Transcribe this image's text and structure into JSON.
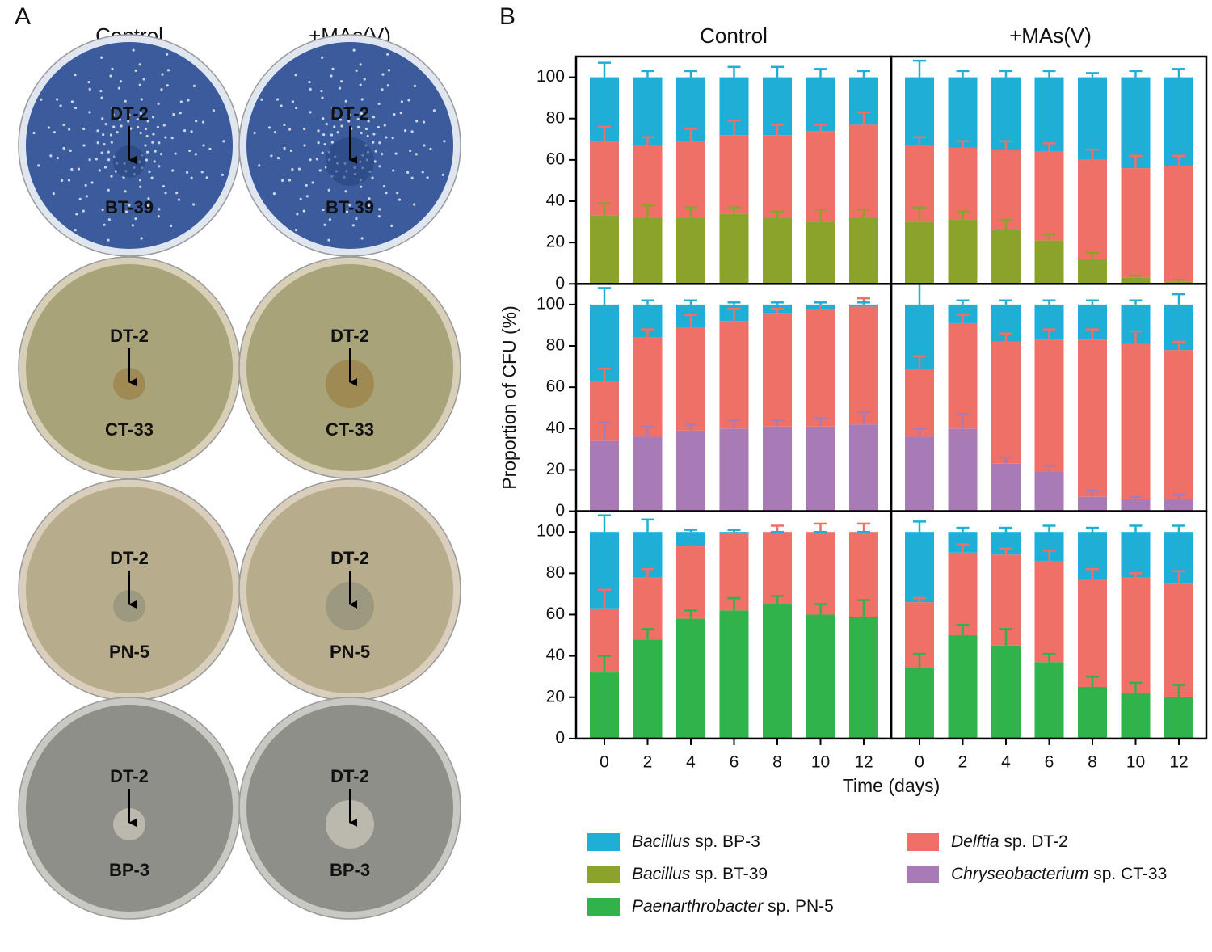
{
  "panel_a": {
    "label": "A",
    "columns": [
      "Control",
      "+MAs(V)"
    ],
    "plates": [
      {
        "top": "DT-2",
        "bottom": "BT-39"
      },
      {
        "top": "DT-2",
        "bottom": "CT-33"
      },
      {
        "top": "DT-2",
        "bottom": "PN-5"
      },
      {
        "top": "DT-2",
        "bottom": "BP-3"
      }
    ]
  },
  "panel_b": {
    "label": "B",
    "column_titles": [
      "Control",
      "+MAs(V)"
    ],
    "y_label": "Proportion of CFU (%)",
    "x_label": "Time (days)"
  },
  "chart_data": [
    {
      "type": "bar",
      "stacked": true,
      "ylim": [
        0,
        110
      ],
      "yticks": [
        0,
        20,
        40,
        60,
        80,
        100
      ],
      "series": [
        {
          "name": "Bacillus sp. BT-39",
          "color": "#8ca32b",
          "values": [
            33,
            32,
            32,
            34,
            32,
            30,
            32
          ],
          "errors": [
            6,
            6,
            5,
            3,
            3,
            6,
            4
          ]
        },
        {
          "name": "Delftia sp. DT-2",
          "color": "#ef7067",
          "values": [
            36,
            35,
            37,
            38,
            40,
            44,
            45
          ],
          "errors": [
            7,
            4,
            6,
            7,
            5,
            3,
            6
          ]
        },
        {
          "name": "Bacillus sp. BP-3",
          "color": "#1eaed6",
          "values": [
            31,
            33,
            31,
            28,
            28,
            26,
            23
          ],
          "errors": [
            7,
            3,
            3,
            5,
            5,
            4,
            3
          ]
        }
      ]
    },
    {
      "type": "bar",
      "stacked": true,
      "ylim": [
        0,
        110
      ],
      "series": [
        {
          "name": "Bacillus sp. BT-39",
          "color": "#8ca32b",
          "values": [
            30,
            31,
            26,
            21,
            12,
            3,
            1
          ],
          "errors": [
            7,
            4,
            5,
            3,
            3,
            1,
            1
          ]
        },
        {
          "name": "Delftia sp. DT-2",
          "color": "#ef7067",
          "values": [
            37,
            35,
            39,
            43,
            48,
            53,
            56
          ],
          "errors": [
            4,
            3,
            4,
            4,
            5,
            6,
            5
          ]
        },
        {
          "name": "Bacillus sp. BP-3",
          "color": "#1eaed6",
          "values": [
            33,
            34,
            35,
            36,
            40,
            44,
            43
          ],
          "errors": [
            8,
            3,
            3,
            3,
            2,
            3,
            4
          ]
        }
      ]
    },
    {
      "type": "bar",
      "stacked": true,
      "ylim": [
        0,
        110
      ],
      "yticks": [
        0,
        20,
        40,
        60,
        80,
        100
      ],
      "series": [
        {
          "name": "Chryseobacterium sp. CT-33",
          "color": "#a87bb6",
          "values": [
            34,
            36,
            39,
            40,
            41,
            41,
            42
          ],
          "errors": [
            9,
            5,
            3,
            4,
            3,
            4,
            6
          ]
        },
        {
          "name": "Delftia sp. DT-2",
          "color": "#ef7067",
          "values": [
            29,
            48,
            50,
            52,
            55,
            57,
            57
          ],
          "errors": [
            6,
            4,
            6,
            6,
            2,
            3,
            4
          ]
        },
        {
          "name": "Bacillus sp. BP-3",
          "color": "#1eaed6",
          "values": [
            37,
            16,
            11,
            8,
            4,
            2,
            1
          ],
          "errors": [
            8,
            2,
            2,
            1,
            1,
            1,
            1
          ]
        }
      ]
    },
    {
      "type": "bar",
      "stacked": true,
      "ylim": [
        0,
        110
      ],
      "series": [
        {
          "name": "Chryseobacterium sp. CT-33",
          "color": "#a87bb6",
          "values": [
            36,
            40,
            23,
            19,
            7,
            6,
            6
          ],
          "errors": [
            4,
            7,
            3,
            3,
            3,
            1,
            2
          ]
        },
        {
          "name": "Delftia sp. DT-2",
          "color": "#ef7067",
          "values": [
            33,
            51,
            59,
            64,
            76,
            75,
            72
          ],
          "errors": [
            6,
            4,
            4,
            5,
            5,
            6,
            4
          ]
        },
        {
          "name": "Bacillus sp. BP-3",
          "color": "#1eaed6",
          "values": [
            31,
            9,
            18,
            17,
            17,
            19,
            22
          ],
          "errors": [
            10,
            2,
            2,
            2,
            2,
            2,
            5
          ]
        }
      ]
    },
    {
      "type": "bar",
      "stacked": true,
      "ylim": [
        0,
        110
      ],
      "yticks": [
        0,
        20,
        40,
        60,
        80,
        100
      ],
      "categories": [
        "0",
        "2",
        "4",
        "6",
        "8",
        "10",
        "12"
      ],
      "series": [
        {
          "name": "Paenarthrobacter sp. PN-5",
          "color": "#2fb34a",
          "values": [
            32,
            48,
            58,
            62,
            65,
            60,
            59
          ],
          "errors": [
            8,
            5,
            4,
            6,
            4,
            5,
            8
          ]
        },
        {
          "name": "Delftia sp. DT-2",
          "color": "#ef7067",
          "values": [
            31,
            30,
            35,
            37,
            35,
            40,
            41
          ],
          "errors": [
            9,
            4,
            0,
            2,
            3,
            4,
            4
          ]
        },
        {
          "name": "Bacillus sp. BP-3",
          "color": "#1eaed6",
          "values": [
            37,
            22,
            7,
            1,
            0,
            0,
            0
          ],
          "errors": [
            8,
            6,
            1,
            1,
            0,
            0,
            0
          ]
        }
      ]
    },
    {
      "type": "bar",
      "stacked": true,
      "ylim": [
        0,
        110
      ],
      "categories": [
        "0",
        "2",
        "4",
        "6",
        "8",
        "10",
        "12"
      ],
      "series": [
        {
          "name": "Paenarthrobacter sp. PN-5",
          "color": "#2fb34a",
          "values": [
            34,
            50,
            45,
            37,
            25,
            22,
            20
          ],
          "errors": [
            7,
            5,
            8,
            4,
            5,
            5,
            6
          ]
        },
        {
          "name": "Delftia sp. DT-2",
          "color": "#ef7067",
          "values": [
            32,
            40,
            44,
            49,
            52,
            56,
            55
          ],
          "errors": [
            2,
            4,
            3,
            5,
            5,
            2,
            6
          ]
        },
        {
          "name": "Bacillus sp. BP-3",
          "color": "#1eaed6",
          "values": [
            34,
            10,
            11,
            14,
            23,
            22,
            25
          ],
          "errors": [
            5,
            2,
            2,
            3,
            2,
            3,
            3
          ]
        }
      ]
    }
  ]
}
